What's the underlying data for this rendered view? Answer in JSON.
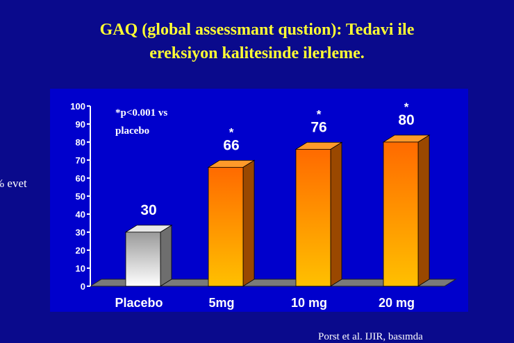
{
  "title_line1": "GAQ (global assessmant qustion): Tedavi ile",
  "title_line2": "ereksiyon kalitesinde ilerleme.",
  "y_axis_label": "% evet",
  "source": "Porst et al. IJIR, basımda",
  "colors": {
    "background": "#0a0a8c",
    "plot_area": "#0000cc",
    "title": "#ffff33",
    "placebo_bar": "#d8d8d8",
    "drug_bar": "#ff8000"
  },
  "chart_data": {
    "type": "bar",
    "categories": [
      "Placebo",
      "5mg",
      "10 mg",
      "20 mg"
    ],
    "values": [
      30,
      66,
      76,
      80
    ],
    "value_labels": [
      "30",
      "66",
      "76",
      "80"
    ],
    "significance": [
      "",
      "*",
      "*",
      "*"
    ],
    "annotation_line1": "*p<0.001 vs",
    "annotation_line2": "placebo",
    "ylabel": "% evet",
    "ylim": [
      0,
      100
    ],
    "yticks": [
      "0",
      "10",
      "20",
      "30",
      "40",
      "50",
      "60",
      "70",
      "80",
      "90",
      "100"
    ],
    "grid": false,
    "legend": "none"
  }
}
